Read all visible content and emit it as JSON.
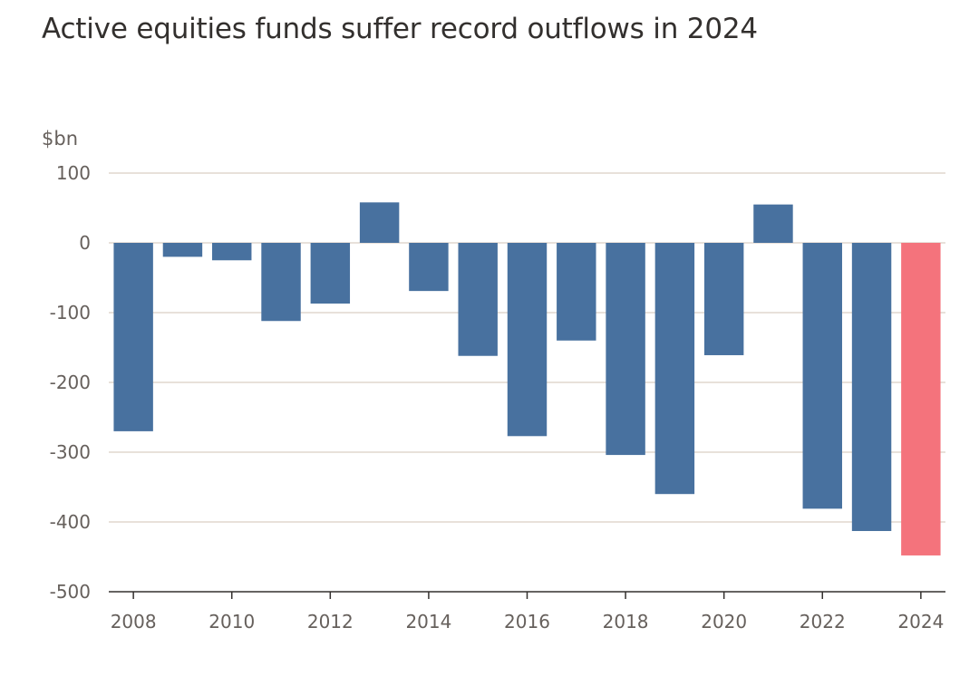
{
  "chart_data": {
    "type": "bar",
    "title": "Active equities funds suffer record outflows in 2024",
    "unit": "$bn",
    "ylim": [
      -500,
      100
    ],
    "y_ticks": [
      100,
      0,
      -100,
      -200,
      -300,
      -400,
      -500
    ],
    "x_tick_labels": [
      "2008",
      "2010",
      "2012",
      "2014",
      "2016",
      "2018",
      "2020",
      "2022",
      "2024"
    ],
    "grid": true,
    "categories": [
      "2008",
      "2009",
      "2010",
      "2011",
      "2012",
      "2013",
      "2014",
      "2015",
      "2016",
      "2017",
      "2018",
      "2019",
      "2020",
      "2021",
      "2022",
      "2023",
      "2024"
    ],
    "values": [
      -270,
      -20,
      -25,
      -112,
      -87,
      58,
      -69,
      -162,
      -277,
      -140,
      -304,
      -360,
      -161,
      55,
      -381,
      -413,
      -448
    ],
    "colors": {
      "default": "#48719f",
      "highlight": "#f4737c",
      "grid": "#d9cfc3",
      "axis": "#33302e"
    },
    "highlight_category": "2024"
  }
}
